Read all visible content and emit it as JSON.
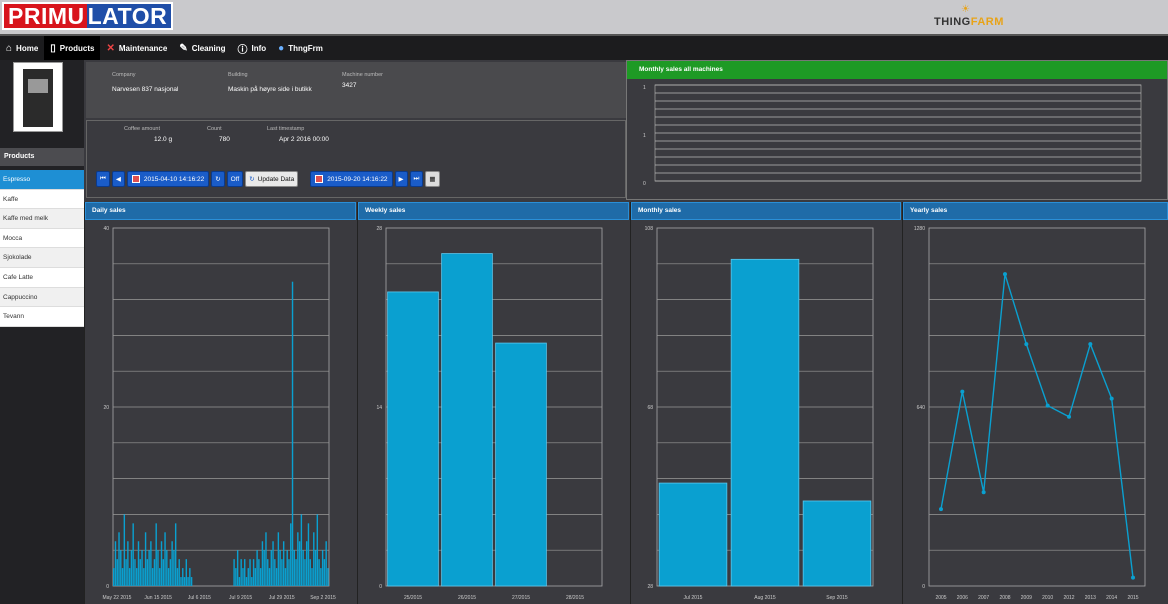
{
  "app": {
    "logo_part1": "PRIMU",
    "logo_part2": "LATOR",
    "partner_logo_part1": "THING",
    "partner_logo_part2": "FARM"
  },
  "nav": [
    {
      "label": "Home",
      "icon": "home-icon",
      "active": false
    },
    {
      "label": "Products",
      "icon": "phone-icon",
      "active": true
    },
    {
      "label": "Maintenance",
      "icon": "tools-icon",
      "active": false
    },
    {
      "label": "Cleaning",
      "icon": "brush-icon",
      "active": false
    },
    {
      "label": "Info",
      "icon": "info-icon",
      "active": false
    },
    {
      "label": "ThngFrm",
      "icon": "globe-icon",
      "active": false
    }
  ],
  "sidebar": {
    "header": "Products",
    "items": [
      "Espresso",
      "Kaffe",
      "Kaffe med melk",
      "Mocca",
      "Sjokolade",
      "Cafe Latte",
      "Cappuccino",
      "Tevann"
    ],
    "selected_index": 0
  },
  "info": {
    "company_label": "Company",
    "company": "Narvesen 837 nasjonal",
    "building_label": "Building",
    "building": "Maskin på høyre side i butikk",
    "machine_label": "Machine number",
    "machine": "3427"
  },
  "stats": {
    "amount_label": "Coffee amount",
    "amount": "12.0",
    "amount_unit": "g",
    "count_label": "Count",
    "count": "780",
    "timestamp_label": "Last timestamp",
    "timestamp": "Apr 2 2016 00:00"
  },
  "toolbar": {
    "date_from": "2015-04-10 14:16:22",
    "off_label": "Off",
    "update_label": "Update Data",
    "date_to": "2015-09-20 14:16:22"
  },
  "monthly_all": {
    "title": "Monthly sales all machines",
    "y_ticks": [
      "1",
      "1",
      "0"
    ]
  },
  "chart_data": [
    {
      "type": "bar",
      "title": "Daily sales",
      "ylim": [
        0,
        40
      ],
      "y_ticks": [
        0,
        20,
        40
      ],
      "x_tick_labels": [
        "May 22 2015",
        "Jun 15 2015",
        "Jul 6 2015",
        "Jul 9 2015",
        "Jul 29 2015",
        "Sep 2 2015"
      ],
      "values": [
        2,
        5,
        3,
        6,
        4,
        2,
        8,
        3,
        5,
        2,
        4,
        7,
        3,
        2,
        5,
        3,
        4,
        2,
        6,
        3,
        4,
        5,
        2,
        3,
        7,
        4,
        2,
        5,
        3,
        6,
        4,
        2,
        3,
        5,
        4,
        7,
        2,
        3,
        1,
        2,
        1,
        3,
        1,
        2,
        1,
        0,
        0,
        0,
        0,
        0,
        0,
        0,
        0,
        0,
        0,
        0,
        0,
        0,
        0,
        0,
        0,
        0,
        0,
        0,
        0,
        0,
        0,
        0,
        3,
        2,
        4,
        1,
        3,
        2,
        3,
        1,
        2,
        3,
        1,
        3,
        2,
        4,
        3,
        2,
        5,
        4,
        6,
        3,
        2,
        4,
        5,
        3,
        2,
        6,
        4,
        3,
        5,
        2,
        4,
        3,
        7,
        34,
        4,
        3,
        6,
        5,
        8,
        4,
        3,
        5,
        7,
        3,
        2,
        6,
        4,
        8,
        3,
        2,
        4,
        3,
        5,
        2
      ]
    },
    {
      "type": "bar",
      "title": "Weekly sales",
      "ylim": [
        0,
        28
      ],
      "y_ticks": [
        0,
        14,
        28
      ],
      "categories": [
        "25/2015",
        "26/2015",
        "27/2015",
        "28/2015"
      ],
      "values": [
        23,
        26,
        19,
        0
      ]
    },
    {
      "type": "bar",
      "title": "Monthly sales",
      "ylim": [
        28,
        108
      ],
      "y_ticks": [
        28,
        68,
        108
      ],
      "categories": [
        "Jul 2015",
        "Aug 2015",
        "Sep 2015"
      ],
      "values": [
        51,
        101,
        47
      ]
    },
    {
      "type": "line",
      "title": "Yearly sales",
      "ylim": [
        0,
        1280
      ],
      "y_ticks": [
        0,
        640,
        1280
      ],
      "categories": [
        "2005",
        "2006",
        "2007",
        "2008",
        "2009",
        "2010",
        "2012",
        "2013",
        "2014",
        "2015"
      ],
      "values": [
        275,
        695,
        335,
        1115,
        865,
        645,
        605,
        865,
        670,
        30
      ]
    }
  ],
  "colors": {
    "accent": "#1e8fd4",
    "bar": "#0aa0d0",
    "green_header": "#1e9a25",
    "blue_header": "#1f6ba8"
  }
}
